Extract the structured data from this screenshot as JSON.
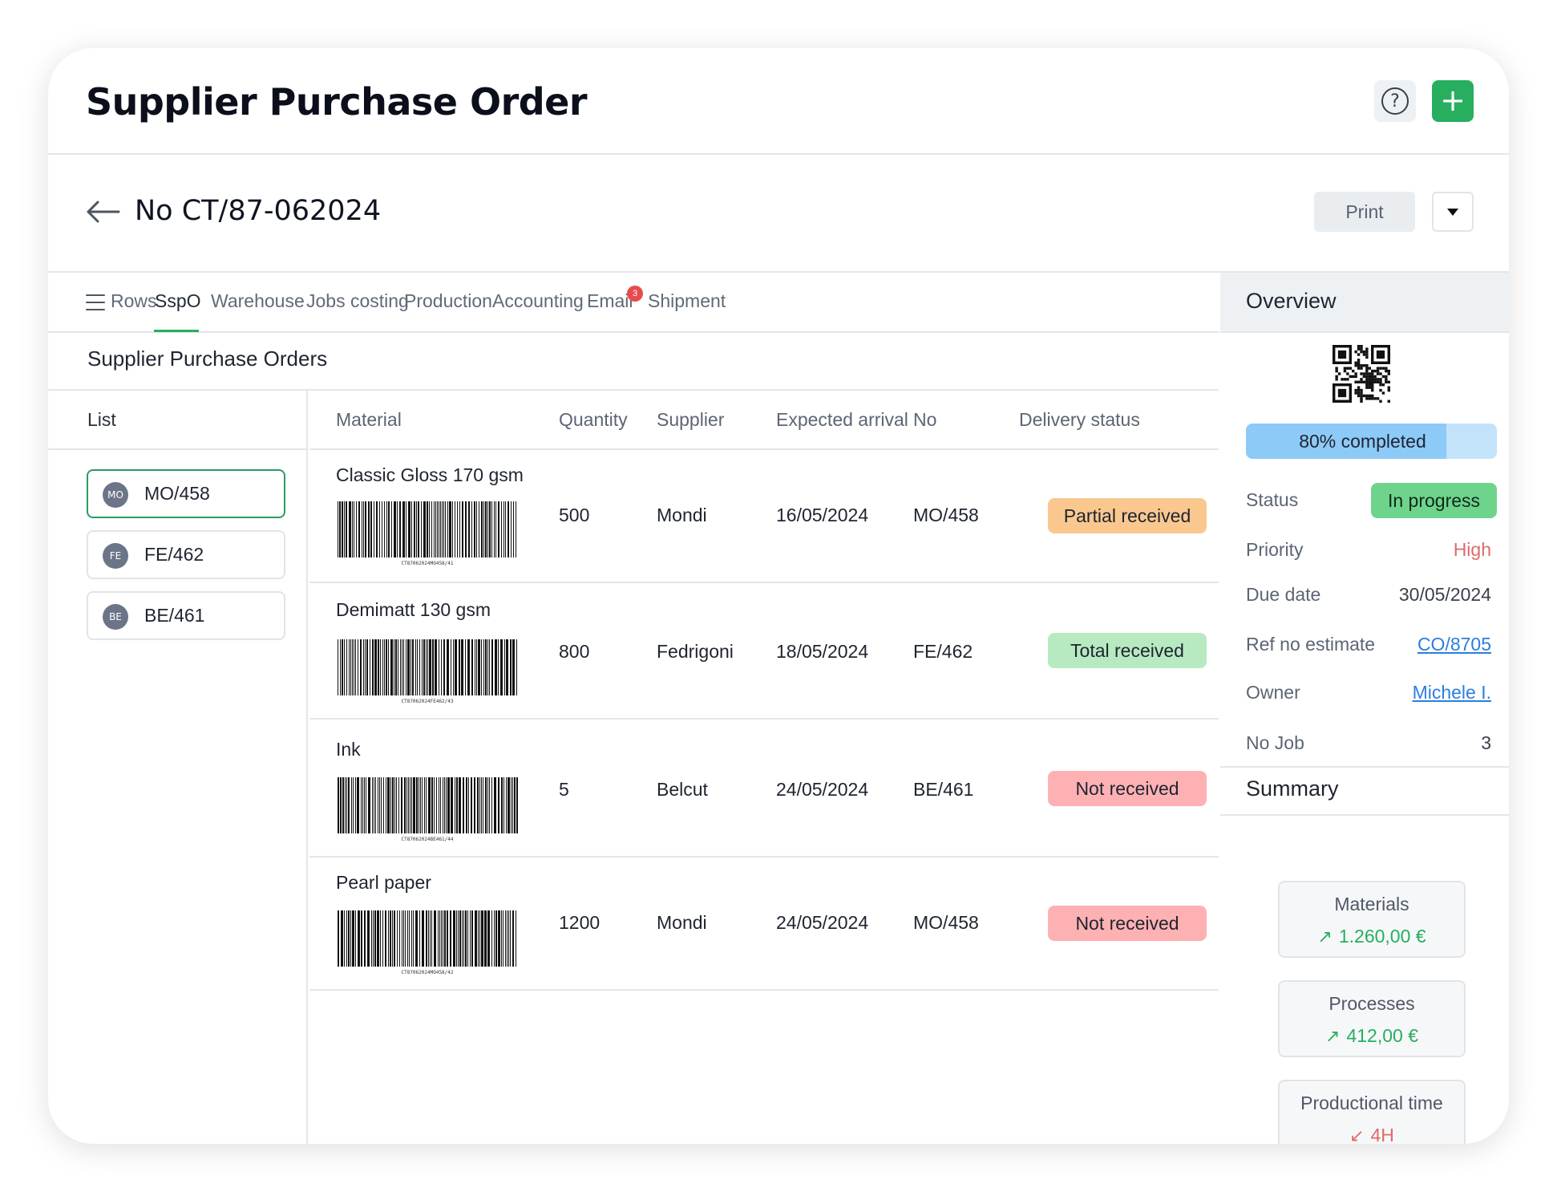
{
  "header": {
    "title": "Supplier Purchase Order",
    "help_icon": "help-circle-icon",
    "add_icon": "plus-icon",
    "add_label": "+"
  },
  "subheader": {
    "doc_no": "No CT/87-062024",
    "print_label": "Print"
  },
  "tabs": [
    {
      "label": "Rows"
    },
    {
      "label": "SspO",
      "active": true
    },
    {
      "label": "Warehouse"
    },
    {
      "label": "Jobs costing"
    },
    {
      "label": "Production"
    },
    {
      "label": "Accounting"
    },
    {
      "label": "Email",
      "badge": "3"
    },
    {
      "label": "Shipment"
    }
  ],
  "section_title": "Supplier Purchase Orders",
  "list": {
    "header": "List",
    "items": [
      {
        "avatar": "MO",
        "label": "MO/458",
        "active": true
      },
      {
        "avatar": "FE",
        "label": "FE/462"
      },
      {
        "avatar": "BE",
        "label": "BE/461"
      }
    ]
  },
  "table": {
    "columns": [
      "Material",
      "Quantity",
      "Supplier",
      "Expected arrival",
      "No",
      "Delivery status"
    ],
    "rows": [
      {
        "material": "Classic Gloss 170 gsm",
        "barcode_text": "CT87062024MO458/41",
        "quantity": "500",
        "supplier": "Mondi",
        "arrival": "16/05/2024",
        "no": "MO/458",
        "status": "Partial received",
        "status_color": "#fac88f"
      },
      {
        "material": "Demimatt 130 gsm",
        "barcode_text": "CT87062024FE462/43",
        "quantity": "800",
        "supplier": "Fedrigoni",
        "arrival": "18/05/2024",
        "no": "FE/462",
        "status": "Total received",
        "status_color": "#b7eac0"
      },
      {
        "material": "Ink",
        "barcode_text": "CT87062024BE461/44",
        "quantity": "5",
        "supplier": "Belcut",
        "arrival": "24/05/2024",
        "no": "BE/461",
        "status": "Not received",
        "status_color": "#fdb1b3"
      },
      {
        "material": "Pearl paper",
        "barcode_text": "CT87062024MO458/42",
        "quantity": "1200",
        "supplier": "Mondi",
        "arrival": "24/05/2024",
        "no": "MO/458",
        "status": "Not received",
        "status_color": "#fdb1b3"
      }
    ]
  },
  "overview": {
    "title": "Overview",
    "progress_percent": 80,
    "progress_label": "80% completed",
    "fields": {
      "status_label": "Status",
      "status_value": "In progress",
      "priority_label": "Priority",
      "priority_value": "High",
      "due_label": "Due date",
      "due_value": "30/05/2024",
      "ref_label": "Ref no estimate",
      "ref_value": "CO/8705",
      "owner_label": "Owner",
      "owner_value": "Michele I.",
      "job_label": "No Job",
      "job_value": "3"
    }
  },
  "summary": {
    "title": "Summary",
    "cards": [
      {
        "label": "Materials",
        "value": "1.260,00 €",
        "trend": "up"
      },
      {
        "label": "Processes",
        "value": "412,00 €",
        "trend": "up"
      },
      {
        "label": "Productional time",
        "value": "4H",
        "trend": "down"
      }
    ]
  },
  "colors": {
    "accent_green": "#27ae5f",
    "link_blue": "#2a7ee0",
    "priority_red": "#e06a6a"
  }
}
